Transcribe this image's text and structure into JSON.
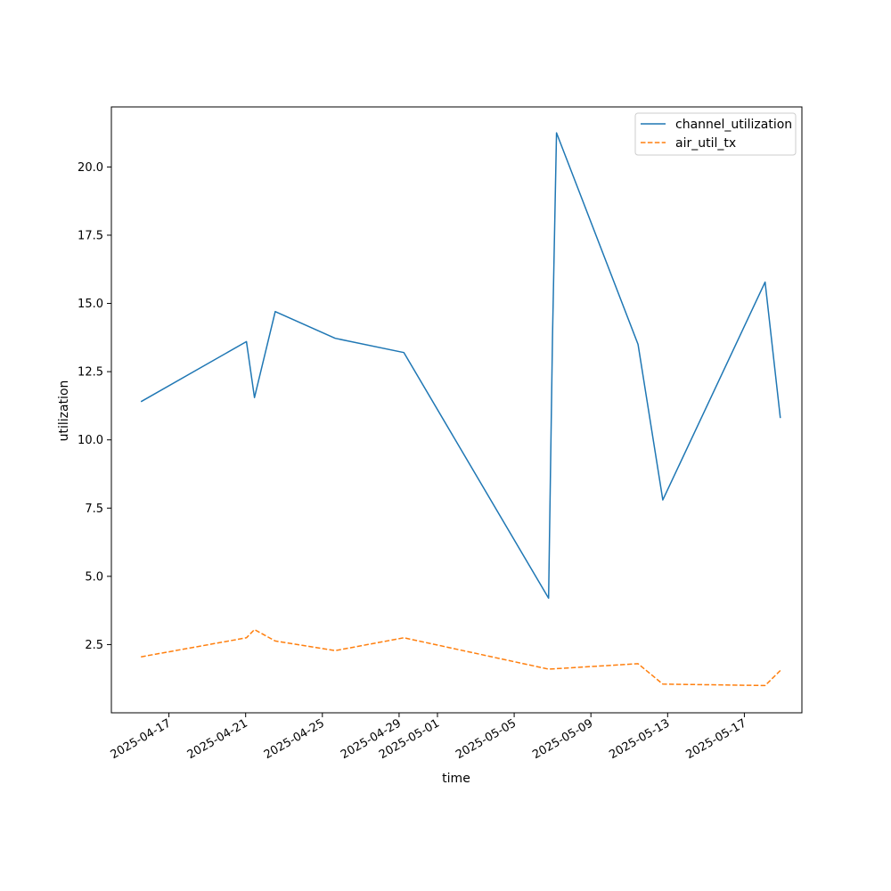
{
  "chart_data": {
    "type": "line",
    "title": "",
    "xlabel": "time",
    "ylabel": "utilization",
    "x_type": "date",
    "xlim": [
      "2025-04-14",
      "2025-05-20"
    ],
    "ylim": [
      0.0,
      22.2
    ],
    "x_ticks": [
      "2025-04-17",
      "2025-04-21",
      "2025-04-25",
      "2025-04-29",
      "2025-05-01",
      "2025-05-05",
      "2025-05-09",
      "2025-05-13",
      "2025-05-17"
    ],
    "y_ticks": [
      2.5,
      5.0,
      7.5,
      10.0,
      12.5,
      15.0,
      17.5,
      20.0
    ],
    "y_tick_labels": [
      "2.5",
      "5.0",
      "7.5",
      "10.0",
      "12.5",
      "15.0",
      "17.5",
      "20.0"
    ],
    "grid": false,
    "legend_position": "top-right",
    "series": [
      {
        "name": "channel_utilization",
        "color": "#1f77b4",
        "dash": "solid",
        "points": [
          [
            "2025-04-15T13:00",
            11.4
          ],
          [
            "2025-04-21T01:00",
            13.6
          ],
          [
            "2025-04-21T11:00",
            11.55
          ],
          [
            "2025-04-22T13:00",
            14.7
          ],
          [
            "2025-04-25T16:00",
            13.72
          ],
          [
            "2025-04-29T06:00",
            13.2
          ],
          [
            "2025-05-06T19:00",
            4.2
          ],
          [
            "2025-05-07T00:00",
            13.8
          ],
          [
            "2025-05-07T05:00",
            21.25
          ],
          [
            "2025-05-11T11:00",
            13.5
          ],
          [
            "2025-05-12T18:00",
            7.8
          ],
          [
            "2025-05-18T02:00",
            15.78
          ],
          [
            "2025-05-18T21:00",
            10.8
          ]
        ]
      },
      {
        "name": "air_util_tx",
        "color": "#ff7f0e",
        "dash": "dashed",
        "points": [
          [
            "2025-04-15T13:00",
            2.05
          ],
          [
            "2025-04-21T01:00",
            2.75
          ],
          [
            "2025-04-21T11:00",
            3.05
          ],
          [
            "2025-04-22T13:00",
            2.63
          ],
          [
            "2025-04-25T16:00",
            2.28
          ],
          [
            "2025-04-29T06:00",
            2.75
          ],
          [
            "2025-05-06T19:00",
            1.6
          ],
          [
            "2025-05-11T11:00",
            1.8
          ],
          [
            "2025-05-12T18:00",
            1.05
          ],
          [
            "2025-05-18T02:00",
            1.0
          ],
          [
            "2025-05-18T21:00",
            1.55
          ]
        ]
      }
    ]
  }
}
